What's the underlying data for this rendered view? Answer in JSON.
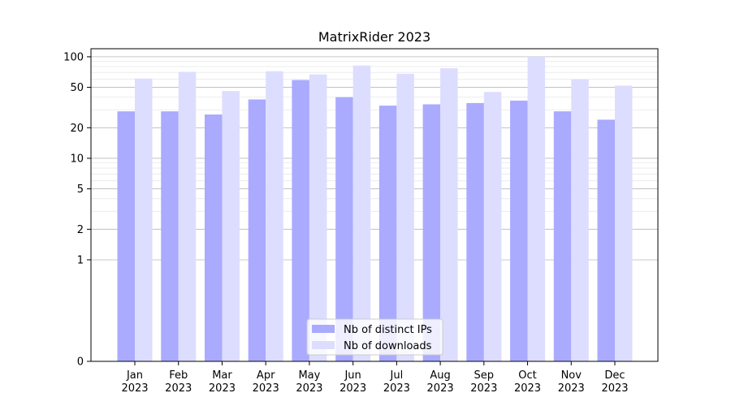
{
  "chart_data": {
    "type": "bar",
    "title": "MatrixRider 2023",
    "xlabel": "",
    "ylabel": "",
    "y_scale": "symlog",
    "ylim": [
      0,
      120
    ],
    "y_ticks": [
      0,
      1,
      2,
      5,
      10,
      20,
      50,
      100
    ],
    "y_tick_labels": [
      "0",
      "1",
      "2",
      "5",
      "10",
      "20",
      "50",
      "100"
    ],
    "grid": true,
    "legend_position": "bottom-center",
    "categories": [
      [
        "Jan",
        "2023"
      ],
      [
        "Feb",
        "2023"
      ],
      [
        "Mar",
        "2023"
      ],
      [
        "Apr",
        "2023"
      ],
      [
        "May",
        "2023"
      ],
      [
        "Jun",
        "2023"
      ],
      [
        "Jul",
        "2023"
      ],
      [
        "Aug",
        "2023"
      ],
      [
        "Sep",
        "2023"
      ],
      [
        "Oct",
        "2023"
      ],
      [
        "Nov",
        "2023"
      ],
      [
        "Dec",
        "2023"
      ]
    ],
    "series": [
      {
        "name": "Nb of distinct IPs",
        "color": "#aaaaff",
        "values": [
          29,
          29,
          27,
          38,
          59,
          40,
          33,
          34,
          35,
          37,
          29,
          24
        ]
      },
      {
        "name": "Nb of downloads",
        "color": "#ddddff",
        "values": [
          61,
          71,
          46,
          72,
          67,
          82,
          68,
          77,
          45,
          100,
          60,
          52
        ]
      }
    ]
  }
}
